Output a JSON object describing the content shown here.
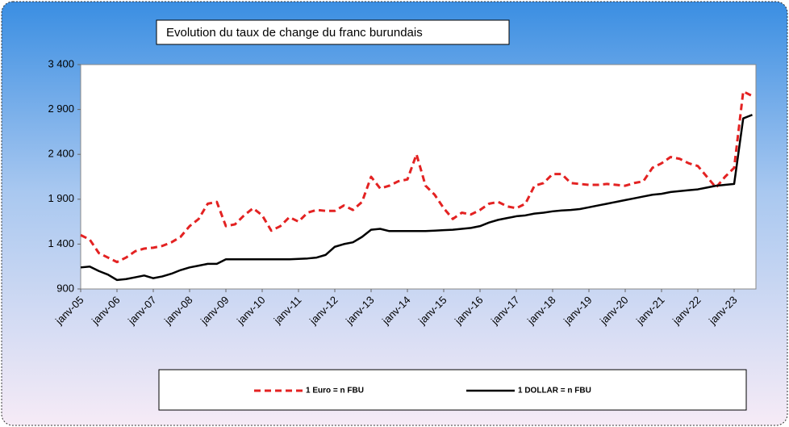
{
  "chart_data": {
    "type": "line",
    "title": "Evolution du taux de change du franc burundais",
    "categories": [
      "janv-05",
      null,
      null,
      null,
      "janv-06",
      null,
      null,
      null,
      "janv-07",
      null,
      null,
      null,
      "janv-08",
      null,
      null,
      null,
      "janv-09",
      null,
      null,
      null,
      "janv-10",
      null,
      null,
      null,
      "janv-11",
      null,
      null,
      null,
      "janv-12",
      null,
      null,
      null,
      "janv-13",
      null,
      null,
      null,
      "janv-14",
      null,
      null,
      null,
      "janv-15",
      null,
      null,
      null,
      "janv-16",
      null,
      null,
      null,
      "janv-17",
      null,
      null,
      null,
      "janv-18",
      null,
      null,
      null,
      "janv-19",
      null,
      null,
      null,
      "janv-20",
      null,
      null,
      null,
      "janv-21",
      null,
      null,
      null,
      "janv-22",
      null,
      null,
      null,
      "janv-23",
      null,
      null
    ],
    "series": [
      {
        "name": "1 Euro = n FBU",
        "color": "#e32222",
        "dashed": true,
        "values": [
          1500,
          1450,
          1300,
          1250,
          1200,
          1250,
          1320,
          1350,
          1360,
          1380,
          1420,
          1480,
          1600,
          1680,
          1850,
          1870,
          1600,
          1620,
          1720,
          1800,
          1720,
          1550,
          1600,
          1700,
          1650,
          1750,
          1780,
          1770,
          1770,
          1830,
          1780,
          1870,
          2150,
          2020,
          2050,
          2100,
          2120,
          2400,
          2050,
          1950,
          1800,
          1680,
          1750,
          1730,
          1780,
          1850,
          1870,
          1820,
          1800,
          1850,
          2050,
          2080,
          2180,
          2180,
          2080,
          2070,
          2060,
          2060,
          2070,
          2060,
          2050,
          2080,
          2100,
          2250,
          2300,
          2370,
          2350,
          2300,
          2270,
          2150,
          2030,
          2150,
          2250,
          3100,
          3050
        ]
      },
      {
        "name": "1 DOLLAR = n FBU",
        "color": "#000000",
        "dashed": false,
        "values": [
          1140,
          1150,
          1100,
          1060,
          1000,
          1010,
          1030,
          1050,
          1020,
          1040,
          1070,
          1110,
          1140,
          1160,
          1180,
          1180,
          1230,
          1230,
          1230,
          1230,
          1230,
          1230,
          1230,
          1230,
          1235,
          1240,
          1250,
          1280,
          1370,
          1400,
          1420,
          1480,
          1560,
          1570,
          1545,
          1545,
          1545,
          1545,
          1545,
          1550,
          1555,
          1560,
          1570,
          1580,
          1600,
          1640,
          1670,
          1690,
          1710,
          1720,
          1740,
          1750,
          1765,
          1775,
          1780,
          1790,
          1810,
          1830,
          1850,
          1870,
          1890,
          1910,
          1930,
          1950,
          1960,
          1980,
          1990,
          2000,
          2010,
          2030,
          2050,
          2060,
          2070,
          2800,
          2840
        ]
      }
    ],
    "ylim": [
      900,
      3400
    ],
    "yticks": [
      {
        "value": 900,
        "label": "900"
      },
      {
        "value": 1400,
        "label": "1 400"
      },
      {
        "value": 1900,
        "label": "1 900"
      },
      {
        "value": 2400,
        "label": "2 400"
      },
      {
        "value": 2900,
        "label": "2 900"
      },
      {
        "value": 3400,
        "label": "3 400"
      }
    ],
    "grid": false,
    "legend": "bottom"
  }
}
